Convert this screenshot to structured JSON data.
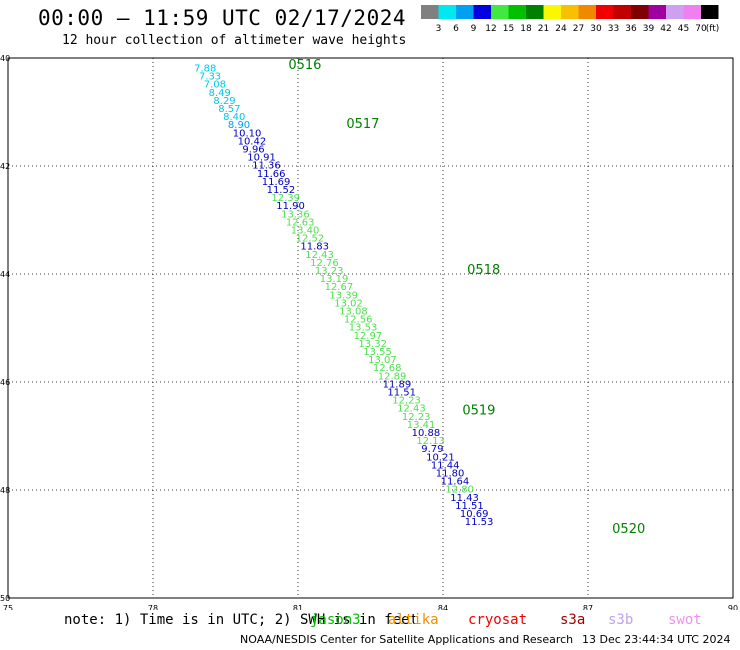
{
  "header": {
    "title": "00:00 – 11:59 UTC 02/17/2024",
    "subtitle": "12 hour collection of altimeter wave heights"
  },
  "legend": {
    "labels": [
      "3",
      "6",
      "9",
      "12",
      "15",
      "18",
      "21",
      "24",
      "27",
      "30",
      "33",
      "36",
      "39",
      "42",
      "45",
      "70"
    ],
    "unit": "(ft)",
    "colors": [
      "#808080",
      "#00e8f0",
      "#00a0f0",
      "#0000e0",
      "#40e840",
      "#00c000",
      "#008000",
      "#f8f800",
      "#f8c000",
      "#f08800",
      "#f00000",
      "#c00000",
      "#800000",
      "#a000a0",
      "#d0a0f0",
      "#f080f0",
      "#000000"
    ]
  },
  "axes": {
    "x_ticks": [
      "75",
      "78",
      "81",
      "84",
      "87",
      "90"
    ],
    "y_ticks": [
      "40",
      "42",
      "44",
      "46",
      "48",
      "50"
    ]
  },
  "tracks": [
    {
      "label": "0516",
      "color": "#008000",
      "lon": 80.8,
      "lat": 40.2
    },
    {
      "label": "0517",
      "color": "#008000",
      "lon": 82.0,
      "lat": 41.3
    },
    {
      "label": "0518",
      "color": "#008000",
      "lon": 84.5,
      "lat": 44.0
    },
    {
      "label": "0519",
      "color": "#008000",
      "lon": 84.4,
      "lat": 46.6
    },
    {
      "label": "0520",
      "color": "#008000",
      "lon": 87.5,
      "lat": 48.8
    }
  ],
  "chart_data": {
    "type": "scatter",
    "xlim": [
      75,
      90
    ],
    "ylim": [
      50,
      40
    ],
    "grid": true,
    "points": [
      {
        "lon": 78.85,
        "lat": 40.25,
        "v": "7.88",
        "c": "#00c8e8"
      },
      {
        "lon": 78.95,
        "lat": 40.4,
        "v": "7.33",
        "c": "#00c8e8"
      },
      {
        "lon": 79.05,
        "lat": 40.55,
        "v": "7.08",
        "c": "#00c8e8"
      },
      {
        "lon": 79.15,
        "lat": 40.7,
        "v": "8.49",
        "c": "#00c8e8"
      },
      {
        "lon": 79.25,
        "lat": 40.85,
        "v": "8.29",
        "c": "#00c8e8"
      },
      {
        "lon": 79.35,
        "lat": 41.0,
        "v": "8.57",
        "c": "#00c8e8"
      },
      {
        "lon": 79.45,
        "lat": 41.15,
        "v": "8.40",
        "c": "#00c8e8"
      },
      {
        "lon": 79.55,
        "lat": 41.3,
        "v": "8.90",
        "c": "#00a0f0"
      },
      {
        "lon": 79.65,
        "lat": 41.45,
        "v": "10.10",
        "c": "#0000c0"
      },
      {
        "lon": 79.75,
        "lat": 41.6,
        "v": "10.42",
        "c": "#0000c0"
      },
      {
        "lon": 79.85,
        "lat": 41.75,
        "v": "9.96",
        "c": "#0000c0"
      },
      {
        "lon": 79.95,
        "lat": 41.9,
        "v": "10.91",
        "c": "#0000c0"
      },
      {
        "lon": 80.05,
        "lat": 42.05,
        "v": "11.36",
        "c": "#0000c0"
      },
      {
        "lon": 80.15,
        "lat": 42.2,
        "v": "11.66",
        "c": "#0000c0"
      },
      {
        "lon": 80.25,
        "lat": 42.35,
        "v": "11.69",
        "c": "#0000c0"
      },
      {
        "lon": 80.35,
        "lat": 42.5,
        "v": "11.52",
        "c": "#0000c0"
      },
      {
        "lon": 80.45,
        "lat": 42.65,
        "v": "12.39",
        "c": "#50e050"
      },
      {
        "lon": 80.55,
        "lat": 42.8,
        "v": "11.90",
        "c": "#0000c0"
      },
      {
        "lon": 80.65,
        "lat": 42.95,
        "v": "13.36",
        "c": "#50e050"
      },
      {
        "lon": 80.75,
        "lat": 43.1,
        "v": "12.63",
        "c": "#50e050"
      },
      {
        "lon": 80.85,
        "lat": 43.25,
        "v": "13.40",
        "c": "#50e050"
      },
      {
        "lon": 80.95,
        "lat": 43.4,
        "v": "12.52",
        "c": "#50e050"
      },
      {
        "lon": 81.05,
        "lat": 43.55,
        "v": "11.83",
        "c": "#0000c0"
      },
      {
        "lon": 81.15,
        "lat": 43.7,
        "v": "12.43",
        "c": "#50e050"
      },
      {
        "lon": 81.25,
        "lat": 43.85,
        "v": "12.76",
        "c": "#50e050"
      },
      {
        "lon": 81.35,
        "lat": 44.0,
        "v": "13.23",
        "c": "#50e050"
      },
      {
        "lon": 81.45,
        "lat": 44.15,
        "v": "13.19",
        "c": "#50e050"
      },
      {
        "lon": 81.55,
        "lat": 44.3,
        "v": "12.67",
        "c": "#50e050"
      },
      {
        "lon": 81.65,
        "lat": 44.45,
        "v": "13.39",
        "c": "#50e050"
      },
      {
        "lon": 81.75,
        "lat": 44.6,
        "v": "13.02",
        "c": "#50e050"
      },
      {
        "lon": 81.85,
        "lat": 44.75,
        "v": "13.08",
        "c": "#50e050"
      },
      {
        "lon": 81.95,
        "lat": 44.9,
        "v": "12.56",
        "c": "#50e050"
      },
      {
        "lon": 82.05,
        "lat": 45.05,
        "v": "13.53",
        "c": "#50e050"
      },
      {
        "lon": 82.15,
        "lat": 45.2,
        "v": "12.97",
        "c": "#50e050"
      },
      {
        "lon": 82.25,
        "lat": 45.35,
        "v": "13.32",
        "c": "#50e050"
      },
      {
        "lon": 82.35,
        "lat": 45.5,
        "v": "13.55",
        "c": "#50e050"
      },
      {
        "lon": 82.45,
        "lat": 45.65,
        "v": "13.07",
        "c": "#50e050"
      },
      {
        "lon": 82.55,
        "lat": 45.8,
        "v": "12.68",
        "c": "#50e050"
      },
      {
        "lon": 82.65,
        "lat": 45.95,
        "v": "12.89",
        "c": "#50e050"
      },
      {
        "lon": 82.75,
        "lat": 46.1,
        "v": "11.89",
        "c": "#0000c0"
      },
      {
        "lon": 82.85,
        "lat": 46.25,
        "v": "11.51",
        "c": "#0000c0"
      },
      {
        "lon": 82.95,
        "lat": 46.4,
        "v": "12.23",
        "c": "#50e050"
      },
      {
        "lon": 83.05,
        "lat": 46.55,
        "v": "12.43",
        "c": "#50e050"
      },
      {
        "lon": 83.15,
        "lat": 46.7,
        "v": "12.23",
        "c": "#50e050"
      },
      {
        "lon": 83.25,
        "lat": 46.85,
        "v": "13.41",
        "c": "#50e050"
      },
      {
        "lon": 83.35,
        "lat": 47.0,
        "v": "10.88",
        "c": "#0000c0"
      },
      {
        "lon": 83.45,
        "lat": 47.15,
        "v": "12.13",
        "c": "#50e050"
      },
      {
        "lon": 83.55,
        "lat": 47.3,
        "v": "9.79",
        "c": "#0000c0"
      },
      {
        "lon": 83.65,
        "lat": 47.45,
        "v": "10.21",
        "c": "#0000c0"
      },
      {
        "lon": 83.75,
        "lat": 47.6,
        "v": "11.44",
        "c": "#0000c0"
      },
      {
        "lon": 83.85,
        "lat": 47.75,
        "v": "11.80",
        "c": "#0000c0"
      },
      {
        "lon": 83.95,
        "lat": 47.9,
        "v": "11.64",
        "c": "#0000c0"
      },
      {
        "lon": 84.05,
        "lat": 48.05,
        "v": "12.80",
        "c": "#50e050"
      },
      {
        "lon": 84.15,
        "lat": 48.2,
        "v": "11.43",
        "c": "#0000c0"
      },
      {
        "lon": 84.25,
        "lat": 48.35,
        "v": "11.51",
        "c": "#0000c0"
      },
      {
        "lon": 84.35,
        "lat": 48.5,
        "v": "10.69",
        "c": "#0000c0"
      },
      {
        "lon": 84.45,
        "lat": 48.65,
        "v": "11.53",
        "c": "#0000c0"
      }
    ]
  },
  "notes": {
    "note_text": "note: 1) Time is in UTC; 2) SWH is in feet",
    "satellites": [
      {
        "name": "jason3",
        "color": "#00c000"
      },
      {
        "name": "altika",
        "color": "#f09000"
      },
      {
        "name": "cryosat",
        "color": "#f00000"
      },
      {
        "name": "s3a",
        "color": "#a00000"
      },
      {
        "name": "s3b",
        "color": "#c0a0f0"
      },
      {
        "name": "swot",
        "color": "#f090f0"
      }
    ],
    "footer": "NOAA/NESDIS Center for Satellite Applications and Research",
    "credit": "13 Dec 23:44:34 UTC 2024"
  }
}
